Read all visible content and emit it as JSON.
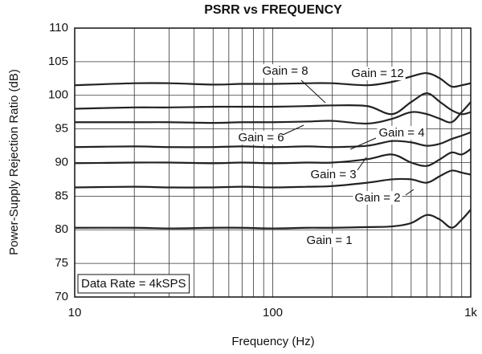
{
  "chart_data": {
    "type": "line",
    "title": "PSRR vs FREQUENCY",
    "x_label": "Frequency (Hz)",
    "y_label": "Power-Supply Rejection Ratio (dB)",
    "annotation": "Data Rate = 4kSPS",
    "log_x": true,
    "grid": true,
    "xlim": [
      10,
      1000
    ],
    "xticks": [
      10,
      100,
      {
        "value": 1000,
        "label": "1k"
      }
    ],
    "ylim": [
      70,
      110
    ],
    "yticks": [
      70,
      75,
      80,
      85,
      90,
      95,
      100,
      105,
      110
    ],
    "x": [
      10,
      20,
      30,
      50,
      70,
      100,
      150,
      200,
      300,
      400,
      500,
      600,
      700,
      800,
      900,
      1000
    ],
    "series": [
      {
        "name": "Gain = 12",
        "color": "#222222",
        "values": [
          101.5,
          101.8,
          101.8,
          101.6,
          101.7,
          101.7,
          101.8,
          101.8,
          101.5,
          102,
          102.8,
          103.3,
          102.5,
          101.3,
          101.5,
          101.8
        ]
      },
      {
        "name": "Gain = 8",
        "color": "#222222",
        "values": [
          98,
          98.2,
          98.2,
          98.3,
          98.3,
          98.3,
          98.4,
          98.5,
          98.4,
          97.2,
          99,
          100.3,
          99,
          97.8,
          97.2,
          97.5
        ]
      },
      {
        "name": "Gain = 6",
        "color": "#222222",
        "values": [
          96,
          96,
          96,
          95.9,
          96,
          96,
          96.1,
          96.2,
          95.8,
          96.5,
          97.5,
          97.2,
          96.5,
          96,
          97.5,
          99
        ]
      },
      {
        "name": "Gain = 4",
        "color": "#222222",
        "values": [
          92.3,
          92.4,
          92.3,
          92.3,
          92.4,
          92.3,
          92.4,
          92.3,
          92.5,
          93.2,
          93,
          92.5,
          92.8,
          93.5,
          94,
          94.5
        ]
      },
      {
        "name": "Gain = 3",
        "color": "#222222",
        "values": [
          89.9,
          90,
          90,
          89.9,
          90,
          89.9,
          90,
          90,
          90.5,
          91.2,
          90,
          89.5,
          90.5,
          91.5,
          91.2,
          92
        ]
      },
      {
        "name": "Gain = 2",
        "color": "#222222",
        "values": [
          86.3,
          86.4,
          86.3,
          86.3,
          86.4,
          86.3,
          86.4,
          86.5,
          87,
          87.5,
          87.5,
          87,
          88,
          88.8,
          88.5,
          88.2
        ]
      },
      {
        "name": "Gain = 1",
        "color": "#222222",
        "values": [
          80.3,
          80.3,
          80.2,
          80.3,
          80.3,
          80.2,
          80.3,
          80.3,
          80.4,
          80.5,
          81,
          82.2,
          81.5,
          80.3,
          81.5,
          83
        ]
      }
    ]
  }
}
